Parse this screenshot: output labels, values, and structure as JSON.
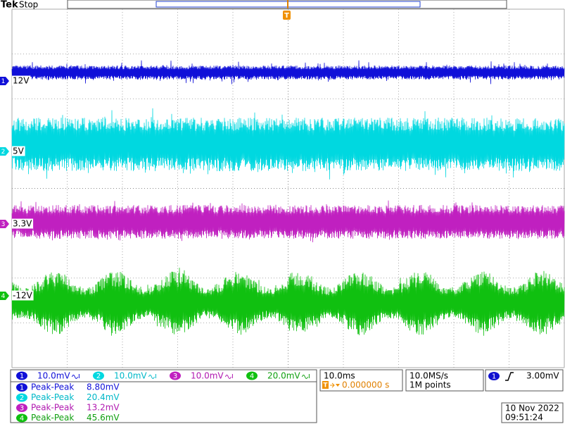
{
  "header": {
    "brand": "Tek",
    "status": "Stop"
  },
  "trigger_marker": "T",
  "channel_markers": [
    {
      "number": "1",
      "label": "12V"
    },
    {
      "number": "2",
      "label": "5V"
    },
    {
      "number": "3",
      "label": "3.3V"
    },
    {
      "number": "4",
      "label": "-12V"
    }
  ],
  "channel_settings": [
    {
      "number": "1",
      "scale": "10.0mV"
    },
    {
      "number": "2",
      "scale": "10.0mV"
    },
    {
      "number": "3",
      "scale": "10.0mV"
    },
    {
      "number": "4",
      "scale": "20.0mV"
    }
  ],
  "timebase": {
    "scale": "10.0ms",
    "trigger_position": "0.000000 s"
  },
  "acquisition": {
    "rate": "10.0MS/s",
    "length": "1M points"
  },
  "trigger": {
    "source": "1",
    "level": "3.00mV"
  },
  "measurements": [
    {
      "number": "1",
      "type": "Peak-Peak",
      "value": "8.80mV"
    },
    {
      "number": "2",
      "type": "Peak-Peak",
      "value": "20.4mV"
    },
    {
      "number": "3",
      "type": "Peak-Peak",
      "value": "13.2mV"
    },
    {
      "number": "4",
      "type": "Peak-Peak",
      "value": "45.6mV"
    }
  ],
  "datetime": {
    "date": "10 Nov 2022",
    "time": "09:51:24"
  }
}
